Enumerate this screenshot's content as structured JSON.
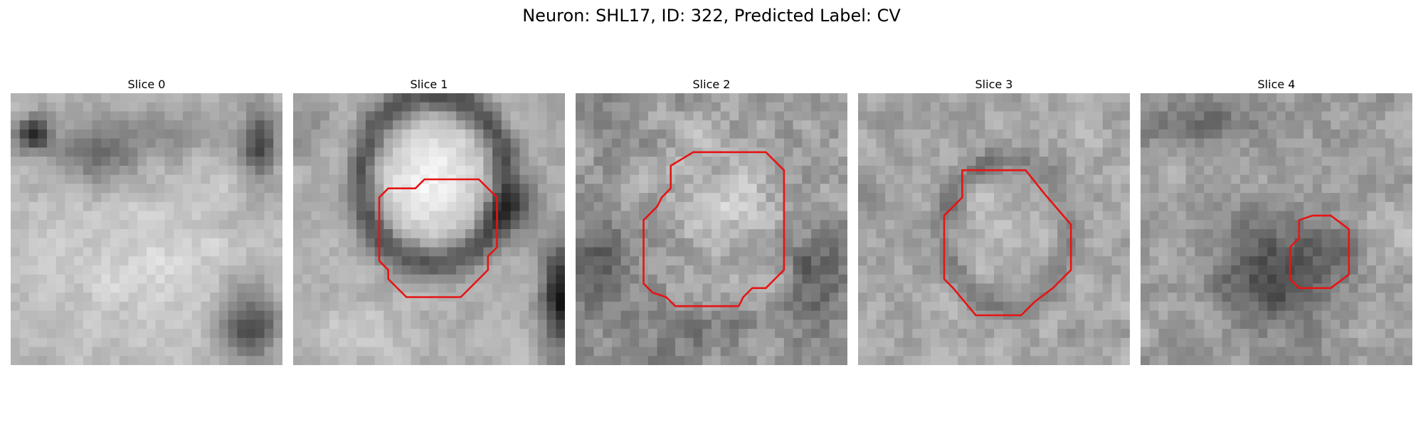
{
  "figure": {
    "title": "Neuron: SHL17, ID: 322, Predicted Label: CV"
  },
  "contour_color": "#e61414",
  "image_style": "grayscale noisy pixel patch (~30x30), red contour overlay",
  "slices": [
    {
      "title": "Slice 0",
      "has_contour": false
    },
    {
      "title": "Slice 1",
      "has_contour": true
    },
    {
      "title": "Slice 2",
      "has_contour": true
    },
    {
      "title": "Slice 3",
      "has_contour": true
    },
    {
      "title": "Slice 4",
      "has_contour": true
    }
  ]
}
